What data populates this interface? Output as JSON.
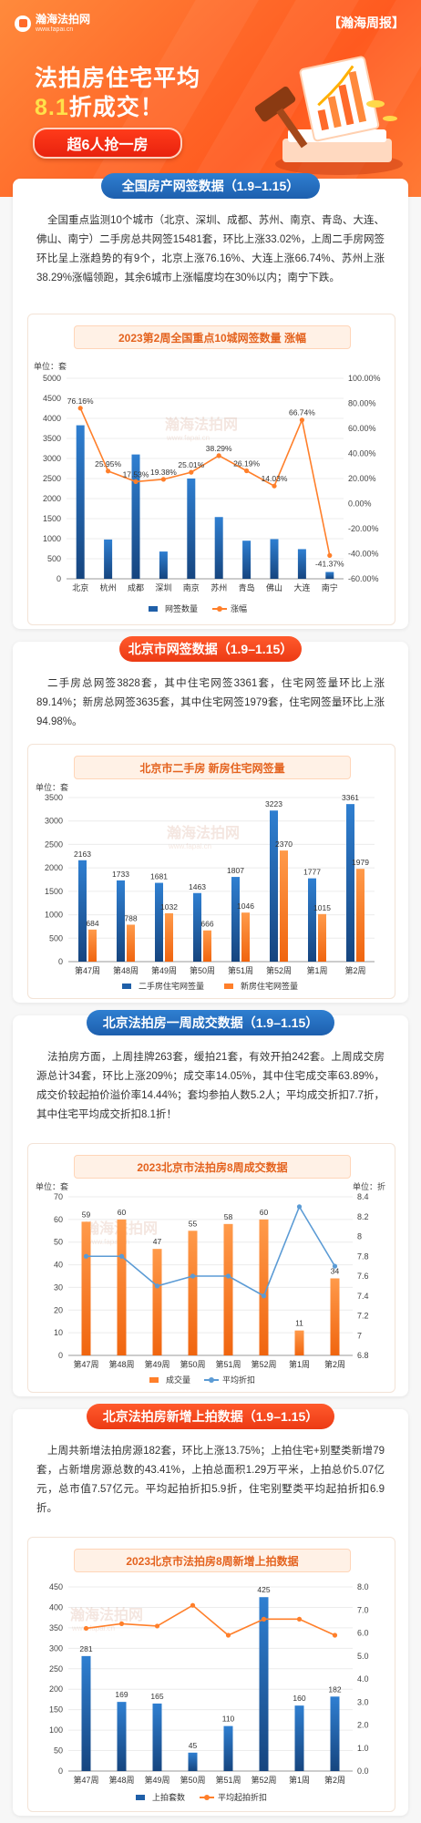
{
  "header": {
    "brand_name": "瀚海法拍网",
    "brand_url": "www.fapai.cn",
    "tag": "【瀚海周报】",
    "title_line1": "法拍房住宅平均",
    "title_line2_highlight": "8.1",
    "title_line2_rest": "折成交！",
    "pill": "超6人抢一房"
  },
  "sections": {
    "s1": {
      "band": "全国房产网签数据（1.9–1.15）",
      "paragraph": "全国重点监测10个城市（北京、深圳、成都、苏州、南京、青岛、大连、佛山、南宁）二手房总共网签15481套，环比上涨33.02%，上周二手房网签环比呈上涨趋势的有9个，北京上涨76.16%、大连上涨66.74%、苏州上涨38.29%涨幅领跑，其余6城市上涨幅度均在30%以内；南宁下跌。",
      "chart_title": "2023第2周全国重点10城网签数量 涨幅"
    },
    "s2": {
      "band": "北京市网签数据（1.9–1.15）",
      "paragraph": "二手房总网签3828套，其中住宅网签3361套，住宅网签量环比上涨89.14%；新房总网签3635套，其中住宅网签1979套，住宅网签量环比上涨94.98%。",
      "chart_title": "北京市二手房 新房住宅网签量"
    },
    "s3": {
      "band": "北京法拍房一周成交数据（1.9–1.15）",
      "paragraph": "法拍房方面，上周挂牌263套，缓拍21套，有效开拍242套。上周成交房源总计34套，环比上涨209%；成交率14.05%，其中住宅成交率63.89%，成交价较起拍价溢价率14.44%；套均参拍人数5.2人；平均成交折扣7.7折，其中住宅平均成交折扣8.1折！",
      "chart_title": "2023北京市法拍房8周成交数据"
    },
    "s4": {
      "band": "北京法拍房新增上拍数据（1.9–1.15）",
      "paragraph": "上周共新增法拍房源182套，环比上涨13.75%；上拍住宅+别墅类新增79套，占新增房源总数的43.41%，上拍总面积1.29万平米，上拍总价5.07亿元，总市值7.57亿元。平均起拍折扣5.9折，住宅别墅类平均起拍折扣6.9折。",
      "chart_title": "2023北京市法拍房8周新增上拍数据"
    }
  },
  "watermark": {
    "name": "瀚海法拍网",
    "url": "www.fapai.cn"
  },
  "colors": {
    "blue": "#1f5fa8",
    "orange": "#ff7f2a",
    "red": "#ec3a14",
    "brand": "#ff6a2a"
  },
  "chart_data": [
    {
      "type": "bar",
      "unit": "单位：套",
      "categories": [
        "北京",
        "杭州",
        "成都",
        "深圳",
        "南京",
        "苏州",
        "青岛",
        "佛山",
        "大连",
        "南宁"
      ],
      "series": [
        {
          "name": "网签数量",
          "type": "bar",
          "values": [
            3828,
            980,
            3100,
            680,
            2500,
            1540,
            950,
            990,
            740,
            170
          ]
        },
        {
          "name": "涨幅",
          "type": "line",
          "axis": "right",
          "values": [
            76.16,
            25.95,
            17.53,
            19.38,
            25.01,
            38.29,
            26.19,
            14.03,
            66.74,
            -41.37
          ],
          "labels": [
            "76.16%",
            "25.95%",
            "17.53%",
            "19.38%",
            "25.01%",
            "38.29%",
            "26.19%",
            "14.03%",
            "66.74%",
            "-41.37%"
          ]
        }
      ],
      "ylim": [
        0,
        5000
      ],
      "yticks": [
        "0",
        "500",
        "1000",
        "1500",
        "2000",
        "2500",
        "3000",
        "3500",
        "4000",
        "4500",
        "5000"
      ],
      "y2lim": [
        -60,
        100
      ],
      "y2ticks": [
        "-60.00%",
        "-40.00%",
        "-20.00%",
        "0.00%",
        "20.00%",
        "40.00%",
        "60.00%",
        "80.00%",
        "100.00%"
      ],
      "legend": "bottom"
    },
    {
      "type": "bar",
      "unit": "单位：套",
      "categories": [
        "第47周",
        "第48周",
        "第49周",
        "第50周",
        "第51周",
        "第52周",
        "第1周",
        "第2周"
      ],
      "series": [
        {
          "name": "二手房住宅网签量",
          "values": [
            2163,
            1733,
            1681,
            1463,
            1807,
            3223,
            1777,
            3361
          ]
        },
        {
          "name": "新房住宅网签量",
          "values": [
            684,
            788,
            1032,
            666,
            1046,
            2370,
            1015,
            1979
          ]
        }
      ],
      "ylim": [
        0,
        3500
      ],
      "yticks": [
        "0",
        "500",
        "1000",
        "1500",
        "2000",
        "2500",
        "3000",
        "3500"
      ],
      "legend": "bottom"
    },
    {
      "type": "bar",
      "unit_left": "单位：套",
      "unit_right": "单位：折",
      "categories": [
        "第47周",
        "第48周",
        "第49周",
        "第50周",
        "第51周",
        "第52周",
        "第1周",
        "第2周"
      ],
      "series": [
        {
          "name": "成交量",
          "type": "bar",
          "values": [
            59,
            60,
            47,
            55,
            58,
            60,
            11,
            34
          ]
        },
        {
          "name": "平均折扣",
          "type": "line",
          "axis": "right",
          "values": [
            7.8,
            7.8,
            7.5,
            7.6,
            7.6,
            7.4,
            8.3,
            7.7
          ]
        }
      ],
      "ylim": [
        0,
        70
      ],
      "yticks": [
        "0",
        "10",
        "20",
        "30",
        "40",
        "50",
        "60",
        "70"
      ],
      "y2lim": [
        6.8,
        8.4
      ],
      "y2ticks": [
        "6.8",
        "7",
        "7.2",
        "7.4",
        "7.6",
        "7.8",
        "8",
        "8.2",
        "8.4"
      ],
      "legend": "bottom"
    },
    {
      "type": "bar",
      "categories": [
        "第47周",
        "第48周",
        "第49周",
        "第50周",
        "第51周",
        "第52周",
        "第1周",
        "第2周"
      ],
      "series": [
        {
          "name": "上拍套数",
          "type": "bar",
          "values": [
            281,
            169,
            165,
            45,
            110,
            425,
            160,
            182
          ]
        },
        {
          "name": "平均起拍折扣",
          "type": "line",
          "axis": "right",
          "values": [
            6.2,
            6.4,
            6.3,
            7.2,
            5.9,
            6.6,
            6.6,
            5.9
          ]
        }
      ],
      "ylim": [
        0,
        450
      ],
      "yticks": [
        "0",
        "50",
        "100",
        "150",
        "200",
        "250",
        "300",
        "350",
        "400",
        "450"
      ],
      "y2lim": [
        0,
        8
      ],
      "y2ticks": [
        "0.0",
        "1.0",
        "2.0",
        "3.0",
        "4.0",
        "5.0",
        "6.0",
        "7.0",
        "8.0"
      ],
      "legend": "bottom"
    }
  ]
}
